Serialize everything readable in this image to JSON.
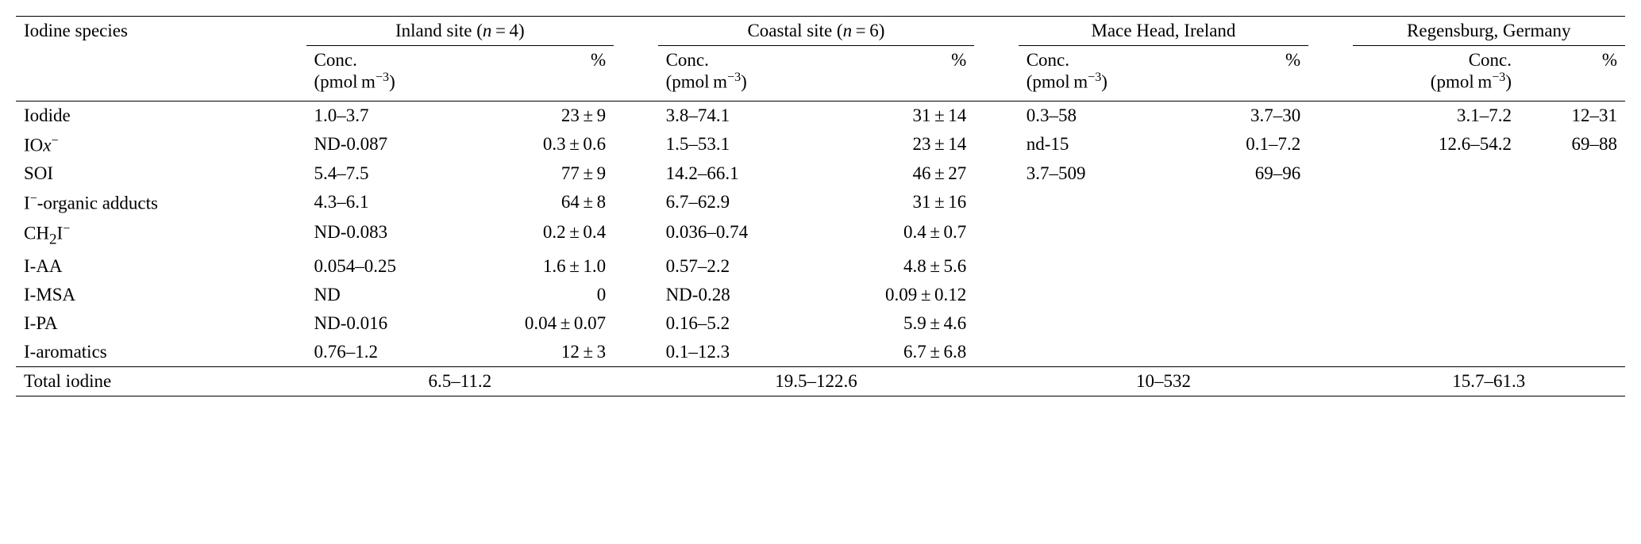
{
  "header": {
    "col_species": "Iodine species",
    "sites": [
      {
        "name_prefix": "Inland site (",
        "n_label": "n",
        "n_eq": " = 4)",
        "has_n": true
      },
      {
        "name_prefix": "Coastal site (",
        "n_label": "n",
        "n_eq": " = 6)",
        "has_n": true
      },
      {
        "name_plain": "Mace Head, Ireland",
        "has_n": false
      },
      {
        "name_plain": "Regensburg, Germany",
        "has_n": false
      }
    ],
    "sub_conc_l1": "Conc.",
    "sub_conc_l2_pre": "(pmol m",
    "sub_conc_l2_sup": "−3",
    "sub_conc_l2_post": ")",
    "sub_pct": "%"
  },
  "rows": [
    {
      "species_html": "Iodide",
      "c1": "1.0–3.7",
      "p1": "23 ± 9",
      "c2": "3.8–74.1",
      "p2": "31 ± 14",
      "c3": "0.3–58",
      "p3": "3.7–30",
      "c4": "3.1–7.2",
      "p4": "12–31"
    },
    {
      "species_html": "IO<span class=\"italic\">x</span><sup>−</sup>",
      "c1": "ND-0.087",
      "p1": "0.3 ± 0.6",
      "c2": "1.5–53.1",
      "p2": "23 ± 14",
      "c3": "nd-15",
      "p3": "0.1–7.2",
      "c4": "12.6–54.2",
      "p4": "69–88"
    },
    {
      "species_html": "SOI",
      "c1": "5.4–7.5",
      "p1": "77 ± 9",
      "c2": "14.2–66.1",
      "p2": "46 ± 27",
      "c3": "3.7–509",
      "p3": "69–96",
      "c4": "",
      "p4": ""
    },
    {
      "species_html": "I<sup>−</sup>-organic adducts",
      "c1": "4.3–6.1",
      "p1": "64 ± 8",
      "c2": "6.7–62.9",
      "p2": "31 ± 16",
      "c3": "",
      "p3": "",
      "c4": "",
      "p4": ""
    },
    {
      "species_html": "CH<sub>2</sub>I<sup>−</sup>",
      "c1": "ND-0.083",
      "p1": "0.2 ± 0.4",
      "c2": "0.036–0.74",
      "p2": "0.4 ± 0.7",
      "c3": "",
      "p3": "",
      "c4": "",
      "p4": ""
    },
    {
      "species_html": "I-AA",
      "c1": "0.054–0.25",
      "p1": "1.6 ± 1.0",
      "c2": "0.57–2.2",
      "p2": "4.8 ± 5.6",
      "c3": "",
      "p3": "",
      "c4": "",
      "p4": ""
    },
    {
      "species_html": "I-MSA",
      "c1": "ND",
      "p1": "0",
      "c2": "ND-0.28",
      "p2": "0.09 ± 0.12",
      "c3": "",
      "p3": "",
      "c4": "",
      "p4": ""
    },
    {
      "species_html": "I-PA",
      "c1": "ND-0.016",
      "p1": "0.04 ± 0.07",
      "c2": "0.16–5.2",
      "p2": "5.9 ± 4.6",
      "c3": "",
      "p3": "",
      "c4": "",
      "p4": ""
    },
    {
      "species_html": "I-aromatics",
      "c1": "0.76–1.2",
      "p1": "12 ± 3",
      "c2": "0.1–12.3",
      "p2": "6.7 ± 6.8",
      "c3": "",
      "p3": "",
      "c4": "",
      "p4": ""
    }
  ],
  "total": {
    "label": "Total iodine",
    "v1": "6.5–11.2",
    "v2": "19.5–122.6",
    "v3": "10–532",
    "v4": "15.7–61.3"
  },
  "style": {
    "background_color": "#ffffff",
    "text_color": "#000000",
    "rule_color": "#000000",
    "font_family": "Times New Roman",
    "font_size_pt": 17
  }
}
